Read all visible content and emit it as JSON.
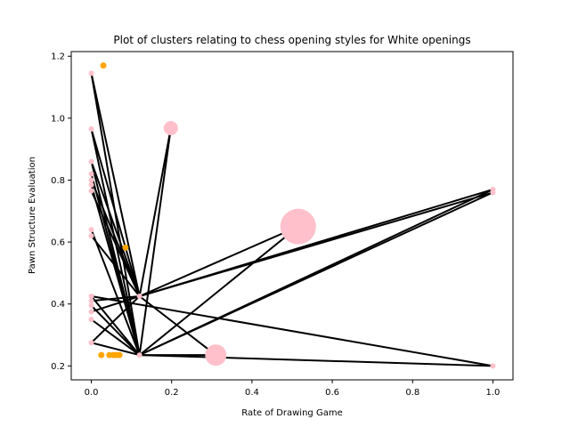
{
  "chart_data": {
    "type": "scatter",
    "title": "Plot of clusters relating to chess opening styles for White openings",
    "xlabel": "Rate of Drawing Game",
    "ylabel": "Pawn Structure Evaluation",
    "xlim": [
      -0.05,
      1.05
    ],
    "ylim": [
      0.155,
      1.215
    ],
    "xticks": [
      0.0,
      0.2,
      0.4,
      0.6,
      0.8,
      1.0
    ],
    "yticks": [
      0.2,
      0.4,
      0.6,
      0.8,
      1.0,
      1.2
    ],
    "xtick_labels": [
      "0.0",
      "0.2",
      "0.4",
      "0.6",
      "0.8",
      "1.0"
    ],
    "ytick_labels": [
      "0.2",
      "0.4",
      "0.6",
      "0.8",
      "1.0",
      "1.2"
    ],
    "grid": false,
    "colors": {
      "cluster": "#ffc0cb",
      "point": "#ffa500",
      "edge": "#000000"
    },
    "clusters": [
      {
        "x": 0.0,
        "y": 1.145,
        "size": 3
      },
      {
        "x": 0.0,
        "y": 0.965,
        "size": 3
      },
      {
        "x": 0.0,
        "y": 0.86,
        "size": 3
      },
      {
        "x": 0.0,
        "y": 0.82,
        "size": 3
      },
      {
        "x": 0.0,
        "y": 0.8,
        "size": 3
      },
      {
        "x": 0.0,
        "y": 0.785,
        "size": 3
      },
      {
        "x": 0.0,
        "y": 0.765,
        "size": 3
      },
      {
        "x": 0.0,
        "y": 0.64,
        "size": 3
      },
      {
        "x": 0.0,
        "y": 0.62,
        "size": 3
      },
      {
        "x": 0.0,
        "y": 0.425,
        "size": 3
      },
      {
        "x": 0.0,
        "y": 0.41,
        "size": 3
      },
      {
        "x": 0.0,
        "y": 0.395,
        "size": 3
      },
      {
        "x": 0.0,
        "y": 0.375,
        "size": 3
      },
      {
        "x": 0.0,
        "y": 0.35,
        "size": 3
      },
      {
        "x": 0.0,
        "y": 0.275,
        "size": 3
      },
      {
        "x": 0.12,
        "y": 0.425,
        "size": 3
      },
      {
        "x": 0.12,
        "y": 0.235,
        "size": 3
      },
      {
        "x": 0.198,
        "y": 0.968,
        "size": 8
      },
      {
        "x": 0.31,
        "y": 0.235,
        "size": 12
      },
      {
        "x": 0.515,
        "y": 0.65,
        "size": 20
      },
      {
        "x": 1.0,
        "y": 0.77,
        "size": 3
      },
      {
        "x": 1.0,
        "y": 0.76,
        "size": 3
      },
      {
        "x": 1.0,
        "y": 0.2,
        "size": 3
      }
    ],
    "points": [
      {
        "x": 0.03,
        "y": 1.17
      },
      {
        "x": 0.085,
        "y": 0.582
      },
      {
        "x": 0.025,
        "y": 0.235
      },
      {
        "x": 0.045,
        "y": 0.235
      },
      {
        "x": 0.055,
        "y": 0.235
      },
      {
        "x": 0.062,
        "y": 0.235
      },
      {
        "x": 0.07,
        "y": 0.235
      }
    ],
    "edges": [
      [
        [
          0.0,
          1.145
        ],
        [
          0.12,
          0.235
        ]
      ],
      [
        [
          0.0,
          1.145
        ],
        [
          0.12,
          0.425
        ]
      ],
      [
        [
          0.0,
          0.965
        ],
        [
          0.12,
          0.235
        ]
      ],
      [
        [
          0.0,
          0.965
        ],
        [
          0.12,
          0.425
        ]
      ],
      [
        [
          0.0,
          0.86
        ],
        [
          0.12,
          0.235
        ]
      ],
      [
        [
          0.0,
          0.86
        ],
        [
          0.12,
          0.425
        ]
      ],
      [
        [
          0.0,
          0.82
        ],
        [
          0.12,
          0.235
        ]
      ],
      [
        [
          0.0,
          0.8
        ],
        [
          0.12,
          0.425
        ]
      ],
      [
        [
          0.0,
          0.785
        ],
        [
          0.12,
          0.235
        ]
      ],
      [
        [
          0.0,
          0.765
        ],
        [
          0.12,
          0.425
        ]
      ],
      [
        [
          0.0,
          0.64
        ],
        [
          0.12,
          0.235
        ]
      ],
      [
        [
          0.0,
          0.62
        ],
        [
          0.12,
          0.425
        ]
      ],
      [
        [
          0.0,
          0.425
        ],
        [
          0.12,
          0.235
        ]
      ],
      [
        [
          0.0,
          0.425
        ],
        [
          1.0,
          0.2
        ]
      ],
      [
        [
          0.0,
          0.41
        ],
        [
          0.12,
          0.425
        ]
      ],
      [
        [
          0.0,
          0.395
        ],
        [
          0.12,
          0.235
        ]
      ],
      [
        [
          0.0,
          0.375
        ],
        [
          0.12,
          0.425
        ]
      ],
      [
        [
          0.0,
          0.35
        ],
        [
          0.12,
          0.235
        ]
      ],
      [
        [
          0.0,
          0.275
        ],
        [
          0.12,
          0.235
        ]
      ],
      [
        [
          0.0,
          0.275
        ],
        [
          0.12,
          0.425
        ]
      ],
      [
        [
          0.12,
          0.425
        ],
        [
          0.31,
          0.235
        ]
      ],
      [
        [
          0.12,
          0.425
        ],
        [
          0.515,
          0.65
        ]
      ],
      [
        [
          0.12,
          0.425
        ],
        [
          1.0,
          0.77
        ]
      ],
      [
        [
          0.12,
          0.425
        ],
        [
          1.0,
          0.76
        ]
      ],
      [
        [
          0.12,
          0.425
        ],
        [
          0.198,
          0.968
        ]
      ],
      [
        [
          0.12,
          0.235
        ],
        [
          0.198,
          0.968
        ]
      ],
      [
        [
          0.12,
          0.235
        ],
        [
          0.515,
          0.65
        ]
      ],
      [
        [
          0.12,
          0.235
        ],
        [
          1.0,
          0.77
        ]
      ],
      [
        [
          0.12,
          0.235
        ],
        [
          1.0,
          0.76
        ]
      ],
      [
        [
          0.12,
          0.235
        ],
        [
          1.0,
          0.2
        ]
      ],
      [
        [
          0.12,
          0.235
        ],
        [
          0.31,
          0.235
        ]
      ]
    ]
  }
}
